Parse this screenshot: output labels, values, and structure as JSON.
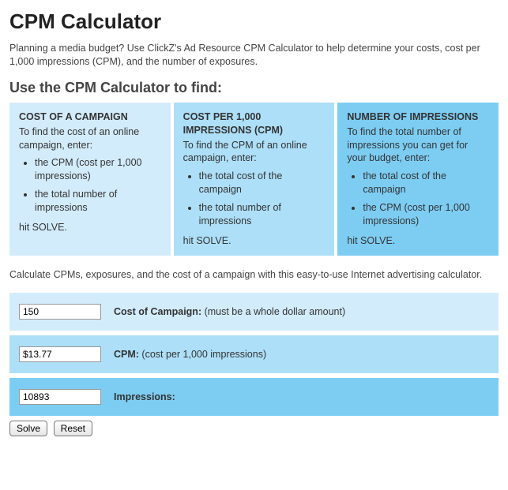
{
  "title": "CPM Calculator",
  "intro": "Planning a media budget? Use ClickZ's Ad Resource CPM Calculator to help determine your costs, cost per 1,000 impressions (CPM), and the number of exposures.",
  "subtitle": "Use the CPM Calculator to find:",
  "panels": {
    "colors": [
      "#d3ecfb",
      "#addff8",
      "#7dcdf3"
    ],
    "items": [
      {
        "title": "COST OF A CAMPAIGN",
        "desc": "To find the cost of an online campaign, enter:",
        "bullets": [
          "the CPM (cost per 1,000 impressions)",
          "the total number of impressions"
        ],
        "footer": "hit SOLVE."
      },
      {
        "title": "COST PER 1,000 IMPRESSIONS (CPM)",
        "desc": "To find the CPM of an online campaign, enter:",
        "bullets": [
          "the total cost of the campaign",
          "the total number of impressions"
        ],
        "footer": "hit SOLVE."
      },
      {
        "title": "NUMBER OF IMPRESSIONS",
        "desc": "To find the total number of impressions you can get for your budget, enter:",
        "bullets": [
          "the total cost of the campaign",
          "the CPM (cost per 1,000 impressions)"
        ],
        "footer": "hit SOLVE."
      }
    ]
  },
  "calc_intro": "Calculate CPMs, exposures, and the cost of a campaign with this easy-to-use Internet advertising calculator.",
  "rows": {
    "colors": [
      "#d3ecfb",
      "#addff8",
      "#7dcdf3"
    ],
    "cost": {
      "value": "150",
      "label_bold": "Cost of Campaign:",
      "label_rest": " (must be a whole dollar amount)"
    },
    "cpm": {
      "value": "$13.77",
      "label_bold": "CPM:",
      "label_rest": " (cost per 1,000 impressions)"
    },
    "impressions": {
      "value": "10893",
      "label_bold": "Impressions:",
      "label_rest": ""
    }
  },
  "buttons": {
    "solve": "Solve",
    "reset": "Reset"
  }
}
